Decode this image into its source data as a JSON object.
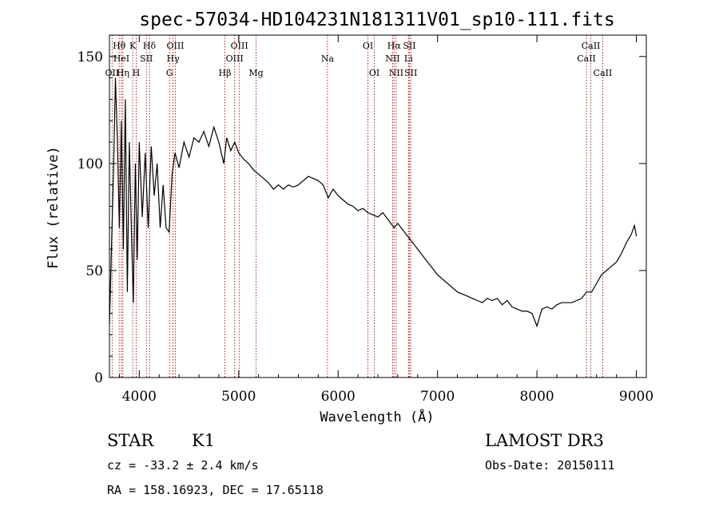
{
  "chart_data": {
    "type": "line",
    "title": "spec-57034-HD104231N181311V01_sp10-111.fits",
    "xlabel": "Wavelength (Å)",
    "ylabel": "Flux (relative)",
    "xlim": [
      3700,
      9100
    ],
    "ylim": [
      0,
      160
    ],
    "x_ticks": [
      4000,
      5000,
      6000,
      7000,
      8000,
      9000
    ],
    "y_ticks": [
      0,
      50,
      100,
      150
    ],
    "grid": false,
    "colors": {
      "spectrum": "#000000",
      "line_markers": "#b22222",
      "axes": "#000000"
    },
    "series": [
      {
        "values": [
          [
            3700,
            25
          ],
          [
            3720,
            60
          ],
          [
            3740,
            95
          ],
          [
            3760,
            140
          ],
          [
            3780,
            110
          ],
          [
            3800,
            70
          ],
          [
            3820,
            120
          ],
          [
            3840,
            60
          ],
          [
            3860,
            130
          ],
          [
            3880,
            40
          ],
          [
            3900,
            110
          ],
          [
            3920,
            70
          ],
          [
            3940,
            35
          ],
          [
            3960,
            100
          ],
          [
            3980,
            55
          ],
          [
            4000,
            110
          ],
          [
            4030,
            75
          ],
          [
            4060,
            105
          ],
          [
            4090,
            70
          ],
          [
            4120,
            108
          ],
          [
            4150,
            85
          ],
          [
            4180,
            100
          ],
          [
            4210,
            70
          ],
          [
            4240,
            90
          ],
          [
            4270,
            70
          ],
          [
            4300,
            68
          ],
          [
            4330,
            95
          ],
          [
            4360,
            105
          ],
          [
            4400,
            98
          ],
          [
            4450,
            110
          ],
          [
            4500,
            103
          ],
          [
            4550,
            112
          ],
          [
            4600,
            110
          ],
          [
            4650,
            115
          ],
          [
            4700,
            108
          ],
          [
            4750,
            117
          ],
          [
            4800,
            110
          ],
          [
            4850,
            100
          ],
          [
            4880,
            112
          ],
          [
            4920,
            106
          ],
          [
            4960,
            110
          ],
          [
            5000,
            105
          ],
          [
            5050,
            102
          ],
          [
            5100,
            100
          ],
          [
            5150,
            97
          ],
          [
            5200,
            95
          ],
          [
            5250,
            93
          ],
          [
            5300,
            91
          ],
          [
            5350,
            88
          ],
          [
            5400,
            90
          ],
          [
            5450,
            88
          ],
          [
            5500,
            90
          ],
          [
            5550,
            89
          ],
          [
            5600,
            90
          ],
          [
            5650,
            92
          ],
          [
            5700,
            94
          ],
          [
            5750,
            93
          ],
          [
            5800,
            92
          ],
          [
            5850,
            90
          ],
          [
            5900,
            84
          ],
          [
            5950,
            88
          ],
          [
            6000,
            85
          ],
          [
            6050,
            83
          ],
          [
            6100,
            81
          ],
          [
            6150,
            80
          ],
          [
            6200,
            78
          ],
          [
            6250,
            79
          ],
          [
            6300,
            77
          ],
          [
            6350,
            76
          ],
          [
            6400,
            75
          ],
          [
            6450,
            77
          ],
          [
            6500,
            74
          ],
          [
            6563,
            70
          ],
          [
            6600,
            72
          ],
          [
            6650,
            69
          ],
          [
            6700,
            66
          ],
          [
            6750,
            63
          ],
          [
            6800,
            60
          ],
          [
            6850,
            57
          ],
          [
            6900,
            54
          ],
          [
            6950,
            51
          ],
          [
            7000,
            48
          ],
          [
            7050,
            46
          ],
          [
            7100,
            44
          ],
          [
            7150,
            42
          ],
          [
            7200,
            40
          ],
          [
            7250,
            39
          ],
          [
            7300,
            38
          ],
          [
            7350,
            37
          ],
          [
            7400,
            36
          ],
          [
            7450,
            35
          ],
          [
            7500,
            37
          ],
          [
            7550,
            36
          ],
          [
            7600,
            37
          ],
          [
            7650,
            34
          ],
          [
            7700,
            36
          ],
          [
            7750,
            33
          ],
          [
            7800,
            32
          ],
          [
            7850,
            31
          ],
          [
            7900,
            31
          ],
          [
            7950,
            30
          ],
          [
            8000,
            24
          ],
          [
            8050,
            32
          ],
          [
            8100,
            33
          ],
          [
            8150,
            32
          ],
          [
            8200,
            34
          ],
          [
            8250,
            35
          ],
          [
            8300,
            35
          ],
          [
            8350,
            35
          ],
          [
            8400,
            36
          ],
          [
            8450,
            37
          ],
          [
            8500,
            40
          ],
          [
            8550,
            40
          ],
          [
            8600,
            44
          ],
          [
            8650,
            48
          ],
          [
            8700,
            50
          ],
          [
            8750,
            52
          ],
          [
            8800,
            54
          ],
          [
            8850,
            58
          ],
          [
            8900,
            63
          ],
          [
            8950,
            67
          ],
          [
            8980,
            71
          ],
          [
            9000,
            66
          ]
        ]
      }
    ],
    "spectral_lines": [
      {
        "label": "OII",
        "wavelength": 3727,
        "row": 3
      },
      {
        "label": "Hθ",
        "wavelength": 3798,
        "row": 1
      },
      {
        "label": "HeI",
        "wavelength": 3820,
        "row": 2
      },
      {
        "label": "Hη",
        "wavelength": 3835,
        "row": 3
      },
      {
        "label": "K",
        "wavelength": 3934,
        "row": 1
      },
      {
        "label": "H",
        "wavelength": 3969,
        "row": 3
      },
      {
        "label": "SII",
        "wavelength": 4072,
        "row": 2
      },
      {
        "label": "Hδ",
        "wavelength": 4102,
        "row": 1
      },
      {
        "label": "OIII",
        "wavelength": 4363,
        "row": 1
      },
      {
        "label": "Hγ",
        "wavelength": 4340,
        "row": 2
      },
      {
        "label": "G",
        "wavelength": 4305,
        "row": 3
      },
      {
        "label": "Hβ",
        "wavelength": 4861,
        "row": 3
      },
      {
        "label": "OIII",
        "wavelength": 4959,
        "row": 2
      },
      {
        "label": "OIII",
        "wavelength": 5007,
        "row": 1
      },
      {
        "label": "Mg",
        "wavelength": 5175,
        "row": 3
      },
      {
        "label": "Na",
        "wavelength": 5893,
        "row": 2
      },
      {
        "label": "OI",
        "wavelength": 6300,
        "row": 1
      },
      {
        "label": "OI",
        "wavelength": 6364,
        "row": 3
      },
      {
        "label": "NII",
        "wavelength": 6548,
        "row": 2
      },
      {
        "label": "Hα",
        "wavelength": 6563,
        "row": 1
      },
      {
        "label": "NII",
        "wavelength": 6584,
        "row": 3
      },
      {
        "label": "Li",
        "wavelength": 6708,
        "row": 2
      },
      {
        "label": "SII",
        "wavelength": 6717,
        "row": 1
      },
      {
        "label": "SII",
        "wavelength": 6731,
        "row": 3
      },
      {
        "label": "CaII",
        "wavelength": 8498,
        "row": 2
      },
      {
        "label": "CaII",
        "wavelength": 8542,
        "row": 1
      },
      {
        "label": "CaII",
        "wavelength": 8662,
        "row": 3
      }
    ]
  },
  "info": {
    "object_class": "STAR",
    "subclass": "K1",
    "survey": "LAMOST DR3",
    "redshift": "cz = -33.2 ± 2.4 km/s",
    "obs_date": "Obs-Date: 20150111",
    "coords": "RA = 158.16923, DEC =  17.65118"
  }
}
